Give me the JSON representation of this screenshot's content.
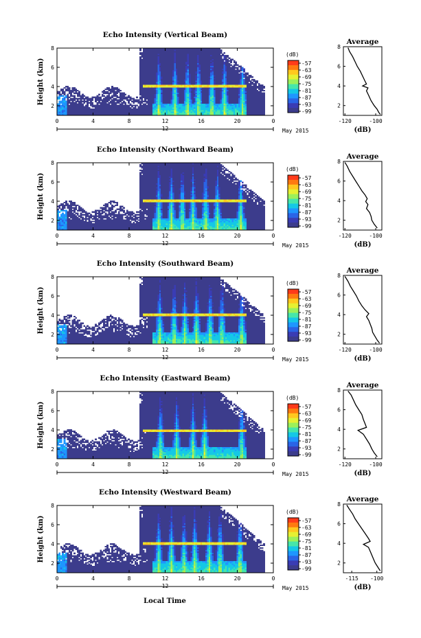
{
  "figure": {
    "x_axis_label": "Local Time",
    "date_label": "May 2015",
    "day_label": "12"
  },
  "colorbar": {
    "unit_label": "(dB)",
    "tick_labels": [
      "-57",
      "-63",
      "-69",
      "-75",
      "-81",
      "-87",
      "-93",
      "-99"
    ],
    "colors": [
      "#ff3b1a",
      "#ff7a10",
      "#ffc81e",
      "#e6f032",
      "#9cf05a",
      "#46e6aa",
      "#14c8e6",
      "#1e96ff",
      "#2a64e6",
      "#3a3cb4",
      "#3c3c8c"
    ]
  },
  "chart_data": [
    {
      "type": "heatmap",
      "title": "Echo Intensity (Vertical Beam)",
      "ylabel": "Height (km)",
      "x_ticks": [
        "0",
        "4",
        "8",
        "12",
        "16",
        "20",
        "0"
      ],
      "y_ticks": [
        "8",
        "6",
        "4",
        "2"
      ],
      "xlim": [
        0,
        24
      ],
      "ylim": [
        1,
        8
      ],
      "clim": [
        -99,
        -54
      ],
      "colorbar_label": "(dB)",
      "spikes": [
        11.2,
        13.0,
        14.4,
        15.6,
        17.1,
        18.5,
        20.5
      ],
      "layer_height": 4.0,
      "profile": {
        "title": "Average",
        "xlabel": "(dB)",
        "x_ticks": [
          "-120",
          "-100"
        ],
        "xlim": [
          -121,
          -96
        ],
        "y_ticks": [
          "8",
          "6",
          "4",
          "2"
        ],
        "ylim": [
          1,
          8
        ],
        "height": [
          7.9,
          7.5,
          7.0,
          6.5,
          6.0,
          5.5,
          5.0,
          4.5,
          4.2,
          4.0,
          3.8,
          3.5,
          3.0,
          2.5,
          2.0,
          1.6,
          1.3,
          1.1
        ],
        "value": [
          -118,
          -117,
          -115,
          -113.5,
          -112,
          -110,
          -108.5,
          -107,
          -106,
          -108.5,
          -105,
          -106,
          -104.5,
          -103,
          -101,
          -99,
          -98,
          -97
        ]
      }
    },
    {
      "type": "heatmap",
      "title": "Echo Intensity (Northward Beam)",
      "ylabel": "Height (km)",
      "x_ticks": [
        "0",
        "4",
        "8",
        "12",
        "16",
        "20",
        "0"
      ],
      "y_ticks": [
        "8",
        "6",
        "4",
        "2"
      ],
      "xlim": [
        0,
        24
      ],
      "ylim": [
        1,
        8
      ],
      "clim": [
        -99,
        -54
      ],
      "colorbar_label": "(dB)",
      "spikes": [
        11.2,
        12.6,
        13.8,
        15.0,
        16.4,
        17.7,
        20.3
      ],
      "layer_height": 4.0,
      "profile": {
        "title": "Average",
        "xlabel": "(dB)",
        "x_ticks": [
          "-120",
          "-100"
        ],
        "xlim": [
          -121,
          -96
        ],
        "y_ticks": [
          "8",
          "6",
          "4",
          "2"
        ],
        "ylim": [
          1,
          8
        ],
        "height": [
          7.9,
          7.5,
          7.0,
          6.5,
          6.0,
          5.5,
          5.0,
          4.6,
          4.2,
          3.9,
          3.6,
          3.2,
          2.8,
          2.4,
          2.0,
          1.6,
          1.2
        ],
        "value": [
          -120,
          -118.5,
          -117,
          -115,
          -113,
          -111,
          -109,
          -107,
          -105.5,
          -106.5,
          -105,
          -106,
          -104,
          -103,
          -102.5,
          -101,
          -99
        ]
      }
    },
    {
      "type": "heatmap",
      "title": "Echo Intensity (Southward Beam)",
      "ylabel": "Height (km)",
      "x_ticks": [
        "0",
        "4",
        "8",
        "12",
        "16",
        "20",
        "0"
      ],
      "y_ticks": [
        "8",
        "6",
        "4",
        "2"
      ],
      "xlim": [
        0,
        24
      ],
      "ylim": [
        1,
        8
      ],
      "clim": [
        -99,
        -54
      ],
      "colorbar_label": "(dB)",
      "spikes": [
        11.3,
        12.9,
        14.1,
        15.4,
        16.9,
        18.2,
        20.4
      ],
      "layer_height": 4.0,
      "profile": {
        "title": "Average",
        "xlabel": "(dB)",
        "x_ticks": [
          "-120",
          "-100"
        ],
        "xlim": [
          -121,
          -96
        ],
        "y_ticks": [
          "8",
          "6",
          "4",
          "2"
        ],
        "ylim": [
          1,
          8
        ],
        "height": [
          7.9,
          7.4,
          6.9,
          6.4,
          5.9,
          5.4,
          4.9,
          4.5,
          4.1,
          3.8,
          3.4,
          3.0,
          2.6,
          2.2,
          1.8,
          1.4,
          1.1
        ],
        "value": [
          -120,
          -118,
          -116.5,
          -114.5,
          -112.5,
          -111,
          -109,
          -107,
          -104.5,
          -106,
          -104.5,
          -103.5,
          -102.5,
          -102,
          -100.5,
          -99,
          -97.5
        ]
      }
    },
    {
      "type": "heatmap",
      "title": "Echo Intensity (Eastward Beam)",
      "ylabel": "Height (km)",
      "x_ticks": [
        "0",
        "4",
        "8",
        "12",
        "16",
        "20",
        "0"
      ],
      "y_ticks": [
        "8",
        "6",
        "4",
        "2"
      ],
      "xlim": [
        0,
        24
      ],
      "ylim": [
        1,
        8
      ],
      "clim": [
        -99,
        -54
      ],
      "colorbar_label": "(dB)",
      "spikes": [
        11.4,
        13.2,
        15.0,
        16.3,
        20.4
      ],
      "layer_height": 3.9,
      "profile": {
        "title": "Average",
        "xlabel": "(dB)",
        "x_ticks": [
          "-120",
          "-100"
        ],
        "xlim": [
          -121,
          -96
        ],
        "y_ticks": [
          "8",
          "6",
          "4",
          "2"
        ],
        "ylim": [
          1,
          8
        ],
        "height": [
          7.9,
          7.5,
          7.0,
          6.5,
          6.0,
          5.5,
          5.0,
          4.6,
          4.2,
          3.9,
          3.5,
          3.0,
          2.5,
          2.0,
          1.6,
          1.2
        ],
        "value": [
          -118,
          -116,
          -114.5,
          -113,
          -111,
          -109,
          -108,
          -107,
          -106,
          -111.5,
          -108,
          -106,
          -104,
          -102.5,
          -101,
          -99
        ]
      }
    },
    {
      "type": "heatmap",
      "title": "Echo Intensity (Westward Beam)",
      "ylabel": "Height (km)",
      "x_ticks": [
        "0",
        "4",
        "8",
        "12",
        "16",
        "20",
        "0"
      ],
      "y_ticks": [
        "8",
        "6",
        "4",
        "2"
      ],
      "xlim": [
        0,
        24
      ],
      "ylim": [
        1,
        8
      ],
      "clim": [
        -99,
        -54
      ],
      "colorbar_label": "(dB)",
      "spikes": [
        11.2,
        12.6,
        14.0,
        15.2,
        16.8,
        18.0,
        20.2
      ],
      "layer_height": 4.0,
      "profile": {
        "title": "Average",
        "xlabel": "(dB)",
        "x_ticks": [
          "-115",
          "-100"
        ],
        "xlim": [
          -120,
          -97
        ],
        "y_ticks": [
          "8",
          "6",
          "4",
          "2"
        ],
        "ylim": [
          1,
          8
        ],
        "height": [
          7.9,
          7.5,
          7.0,
          6.5,
          6.0,
          5.5,
          5.0,
          4.5,
          4.2,
          3.9,
          3.6,
          3.2,
          2.8,
          2.4,
          2.0,
          1.6,
          1.2
        ],
        "value": [
          -118,
          -116.5,
          -114.5,
          -113,
          -111,
          -109,
          -107,
          -105,
          -104,
          -108,
          -105,
          -104,
          -103,
          -102,
          -101,
          -99.5,
          -98
        ]
      }
    }
  ]
}
